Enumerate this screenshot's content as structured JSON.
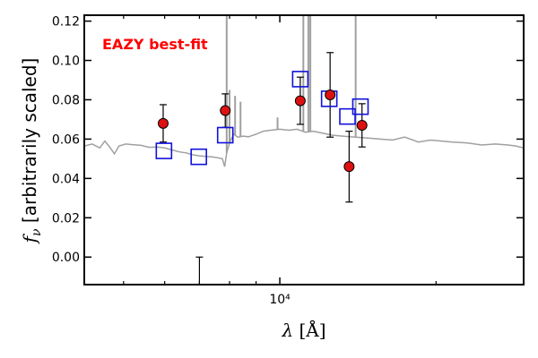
{
  "chart_data": {
    "type": "scatter",
    "title": "",
    "xlabel": "λ [Å]",
    "ylabel": "f_ν [arbitrarily scaled]",
    "x_scale": "log",
    "xlim": [
      4200,
      29500
    ],
    "ylim": [
      -0.014,
      0.123
    ],
    "x_ticks": [
      {
        "value": 10000,
        "label": "10⁴"
      }
    ],
    "y_ticks": [
      {
        "value": 0.0,
        "label": "0.00"
      },
      {
        "value": 0.02,
        "label": "0.02"
      },
      {
        "value": 0.04,
        "label": "0.04"
      },
      {
        "value": 0.06,
        "label": "0.06"
      },
      {
        "value": 0.08,
        "label": "0.08"
      },
      {
        "value": 0.1,
        "label": "0.10"
      },
      {
        "value": 0.12,
        "label": "0.12"
      }
    ],
    "x_minor_ticks": [
      5000,
      6000,
      7000,
      8000,
      9000,
      20000
    ],
    "grid": false,
    "annotation": {
      "text": "EAZY best-fit",
      "color": "#ff0000"
    },
    "observed_color": "#dd1111",
    "model_photometry_color": "#1111dd",
    "template_color": "#a0a0a0",
    "observed": [
      {
        "x": 5960,
        "y": 0.068,
        "err": 0.0095
      },
      {
        "x": 7850,
        "y": 0.0745,
        "err": 0.0085
      },
      {
        "x": 10950,
        "y": 0.0795,
        "err": 0.012
      },
      {
        "x": 12500,
        "y": 0.0825,
        "err": 0.0215
      },
      {
        "x": 13600,
        "y": 0.046,
        "err": 0.018
      },
      {
        "x": 14400,
        "y": 0.067,
        "err": 0.011
      }
    ],
    "upper_limits": [
      {
        "x": 7000,
        "y": 0.0,
        "err": 0.0
      }
    ],
    "model_photometry": [
      {
        "x": 5980,
        "y": 0.054
      },
      {
        "x": 6980,
        "y": 0.051
      },
      {
        "x": 7850,
        "y": 0.062
      },
      {
        "x": 10950,
        "y": 0.0905
      },
      {
        "x": 12450,
        "y": 0.0805
      },
      {
        "x": 13500,
        "y": 0.0715
      },
      {
        "x": 14300,
        "y": 0.0765
      }
    ],
    "template": [
      [
        4200,
        0.0565
      ],
      [
        4350,
        0.0575
      ],
      [
        4500,
        0.0555
      ],
      [
        4600,
        0.059
      ],
      [
        4700,
        0.056
      ],
      [
        4800,
        0.0525
      ],
      [
        4900,
        0.0565
      ],
      [
        5050,
        0.0575
      ],
      [
        5200,
        0.0572
      ],
      [
        5400,
        0.0568
      ],
      [
        5600,
        0.0558
      ],
      [
        5800,
        0.056
      ],
      [
        6000,
        0.0555
      ],
      [
        6200,
        0.0545
      ],
      [
        6400,
        0.0535
      ],
      [
        6600,
        0.053
      ],
      [
        6800,
        0.052
      ],
      [
        7000,
        0.0515
      ],
      [
        7200,
        0.0512
      ],
      [
        7400,
        0.051
      ],
      [
        7600,
        0.0505
      ],
      [
        7750,
        0.05
      ],
      [
        7830,
        0.046
      ],
      [
        7900,
        0.053
      ],
      [
        8000,
        0.058
      ],
      [
        8150,
        0.0625
      ],
      [
        8300,
        0.061
      ],
      [
        8500,
        0.0615
      ],
      [
        8700,
        0.0612
      ],
      [
        9000,
        0.0625
      ],
      [
        9300,
        0.064
      ],
      [
        9600,
        0.0645
      ],
      [
        10000,
        0.065
      ],
      [
        10400,
        0.0645
      ],
      [
        10800,
        0.065
      ],
      [
        11200,
        0.0635
      ],
      [
        11600,
        0.064
      ],
      [
        12000,
        0.0632
      ],
      [
        12600,
        0.062
      ],
      [
        13200,
        0.0615
      ],
      [
        14000,
        0.061
      ],
      [
        14800,
        0.0605
      ],
      [
        15600,
        0.06
      ],
      [
        16500,
        0.0595
      ],
      [
        17400,
        0.061
      ],
      [
        18500,
        0.0585
      ],
      [
        19500,
        0.0595
      ],
      [
        20500,
        0.059
      ],
      [
        21500,
        0.0585
      ],
      [
        23000,
        0.058
      ],
      [
        24500,
        0.057
      ],
      [
        26000,
        0.0575
      ],
      [
        27500,
        0.057
      ],
      [
        28500,
        0.0565
      ],
      [
        29500,
        0.0555
      ]
    ],
    "template_emission_lines": [
      {
        "x": 7900,
        "peak": 0.125
      },
      {
        "x": 8000,
        "peak": 0.085
      },
      {
        "x": 8200,
        "peak": 0.082
      },
      {
        "x": 8400,
        "peak": 0.079
      },
      {
        "x": 9900,
        "peak": 0.071
      },
      {
        "x": 11100,
        "peak": 0.125
      },
      {
        "x": 11350,
        "peak": 0.125
      },
      {
        "x": 11450,
        "peak": 0.125
      },
      {
        "x": 14000,
        "peak": 0.125
      }
    ]
  }
}
